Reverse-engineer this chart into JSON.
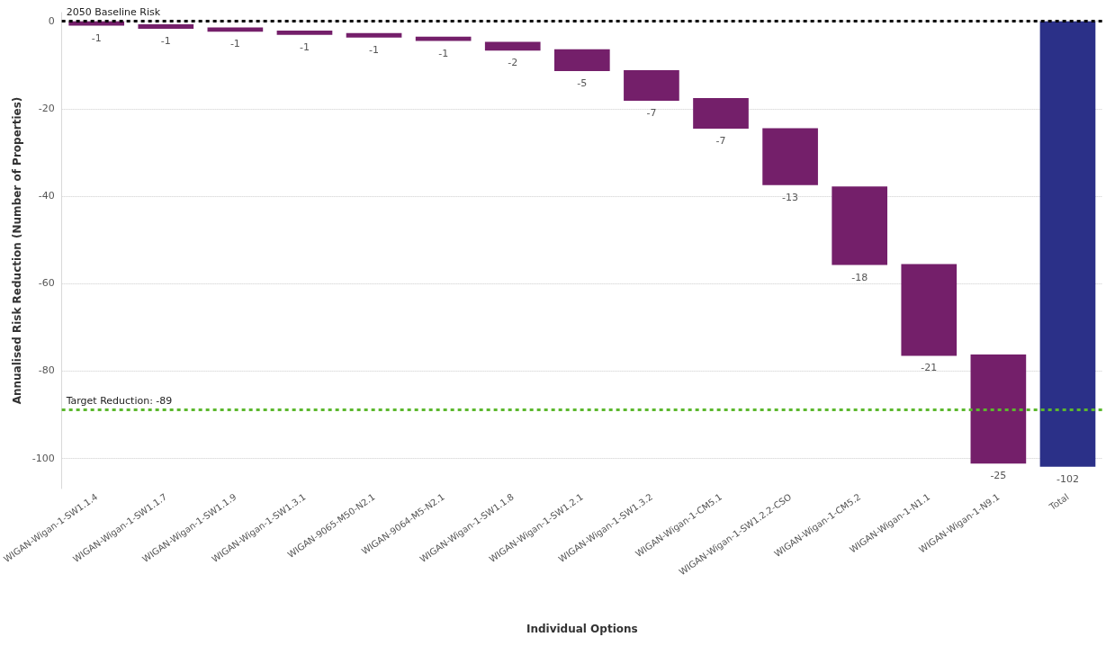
{
  "chart_data": {
    "type": "bar",
    "xlabel": "Individual Options",
    "ylabel": "Annualised Risk Reduction (Number of Properties)",
    "categories": [
      "WIGAN-Wigan-1-SW1.1.4",
      "WIGAN-Wigan-1-SW1.1.7",
      "WIGAN-Wigan-1-SW1.1.9",
      "WIGAN-Wigan-1-SW1.3.1",
      "WIGAN-9065-M50-N2.1",
      "WIGAN-9064-M5-N2.1",
      "WIGAN-Wigan-1-SW1.1.8",
      "WIGAN-Wigan-1-SW1.2.1",
      "WIGAN-Wigan-1-SW1.3.2",
      "WIGAN-Wigan-1-CM5.1",
      "WIGAN-Wigan-1-SW1.2.2-CSO",
      "WIGAN-Wigan-1-CM5.2",
      "WIGAN-Wigan-1-N1.1",
      "WIGAN-Wigan-1-N9.1",
      "Total"
    ],
    "values": [
      -1,
      -1,
      -1,
      -1,
      -1,
      -1,
      -2,
      -5,
      -7,
      -7,
      -13,
      -18,
      -21,
      -25,
      -102
    ],
    "base": [
      0,
      -0.7,
      -1.4,
      -2.1,
      -2.7,
      -3.5,
      -4.7,
      -6.4,
      -11.2,
      -17.6,
      -24.5,
      -37.8,
      -55.6,
      -76.3,
      0
    ],
    "colors": [
      "#741f6a",
      "#741f6a",
      "#741f6a",
      "#741f6a",
      "#741f6a",
      "#741f6a",
      "#741f6a",
      "#741f6a",
      "#741f6a",
      "#741f6a",
      "#741f6a",
      "#741f6a",
      "#741f6a",
      "#741f6a",
      "#2b3088"
    ],
    "data_labels": true,
    "ylim": [
      -107,
      2
    ],
    "yticks": [
      -100,
      -80,
      -60,
      -40,
      -20,
      0
    ],
    "grid": "y",
    "ref_lines": [
      {
        "axis": "y",
        "value": 0,
        "label": "2050 Baseline Risk",
        "color": "#000000",
        "line_style": "dashed"
      },
      {
        "axis": "y",
        "value": -89,
        "label": "Target Reduction: -89",
        "color": "#5cb82e",
        "line_style": "dashed"
      }
    ]
  }
}
